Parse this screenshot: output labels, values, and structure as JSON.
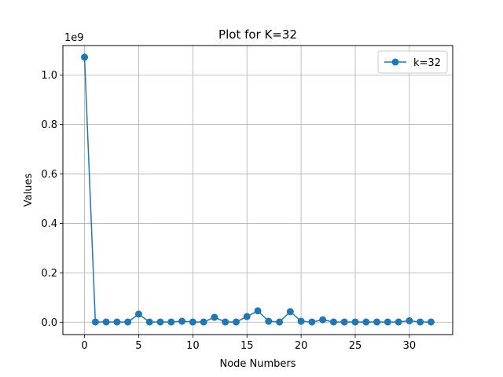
{
  "chart_data": {
    "type": "line",
    "title": "Plot for K=32",
    "xlabel": "Node Numbers",
    "ylabel": "Values",
    "y_scale_note": "1e9",
    "xlim": [
      -2.0,
      34.0
    ],
    "ylim": [
      -0.05,
      1.12
    ],
    "x_ticks": [
      0,
      5,
      10,
      15,
      20,
      25,
      30
    ],
    "y_ticks": [
      0.0,
      0.2,
      0.4,
      0.6,
      0.8,
      1.0
    ],
    "y_tick_labels": [
      "0.0",
      "0.2",
      "0.4",
      "0.6",
      "0.8",
      "1.0"
    ],
    "grid": true,
    "legend_position": "top-right",
    "series": [
      {
        "name": "k=32",
        "color": "#1f77b4",
        "marker": "circle",
        "x": [
          0,
          1,
          2,
          3,
          4,
          5,
          6,
          7,
          8,
          9,
          10,
          11,
          12,
          13,
          14,
          15,
          16,
          17,
          18,
          19,
          20,
          21,
          22,
          23,
          24,
          25,
          26,
          27,
          28,
          29,
          30,
          31,
          32
        ],
        "y": [
          1.073,
          0.001,
          0.001,
          0.001,
          0.001,
          0.033,
          0.001,
          0.001,
          0.001,
          0.004,
          0.001,
          0.001,
          0.02,
          0.001,
          0.001,
          0.023,
          0.046,
          0.004,
          0.001,
          0.043,
          0.004,
          0.001,
          0.01,
          0.001,
          0.001,
          0.001,
          0.001,
          0.001,
          0.001,
          0.001,
          0.006,
          0.001,
          0.001
        ]
      }
    ]
  }
}
